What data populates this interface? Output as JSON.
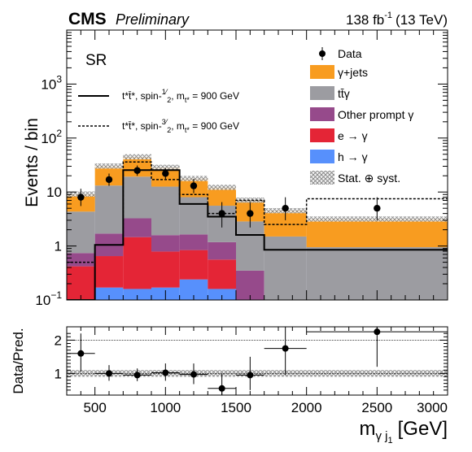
{
  "header": {
    "cms": "CMS",
    "preliminary": "Preliminary",
    "lumi_value": "138 fb",
    "lumi_exp": "-1",
    "energy": "(13 TeV)"
  },
  "region_label": "SR",
  "colors": {
    "gjets": "#f89c20",
    "ttgamma": "#9c9ca1",
    "other_prompt": "#964a8b",
    "e_gamma": "#e42536",
    "h_gamma": "#5790fc",
    "uncertainty": "#888888"
  },
  "legend": {
    "data": "Data",
    "gjets": "γ+jets",
    "ttgamma": "tt̄γ",
    "other_prompt": "Other prompt γ",
    "e_gamma": "e → γ",
    "h_gamma": "h → γ",
    "unc": "Stat. ⊕ syst."
  },
  "signal_labels": {
    "spin_half": {
      "name": "t*t̄*, spin-",
      "num": "1",
      "den": "2",
      "mass_prefix": ", m",
      "mass_sub": "t*",
      "mass_value": " = 900 GeV"
    },
    "spin_three_half": {
      "name": "t*t̄*, spin-",
      "num": "3",
      "den": "2",
      "mass_prefix": ", m",
      "mass_sub": "t*",
      "mass_value": " = 900 GeV"
    }
  },
  "chart_data": {
    "type": "bar",
    "ylabel": "Events / bin",
    "xlabel_main": "m",
    "xlabel_sub": "γ j",
    "xlabel_subsub": "1",
    "xlabel_unit": "[GeV]",
    "ratio_ylabel": "Data/Pred.",
    "xlim": [
      300,
      3000
    ],
    "ylim": [
      0.1,
      10000
    ],
    "yscale": "log",
    "ratio_ylim": [
      0.35,
      2.4
    ],
    "x_ticks": [
      500,
      1000,
      1500,
      2000,
      2500,
      3000
    ],
    "y_ticks": [
      {
        "value": 0.1,
        "base": "10",
        "exp": "−1"
      },
      {
        "value": 1,
        "base": "1",
        "exp": ""
      },
      {
        "value": 10,
        "base": "10",
        "exp": ""
      },
      {
        "value": 100,
        "base": "10",
        "exp": "2"
      },
      {
        "value": 1000,
        "base": "10",
        "exp": "3"
      }
    ],
    "ratio_y_ticks": [
      1,
      2
    ],
    "bin_edges": [
      300,
      500,
      700,
      900,
      1100,
      1300,
      1500,
      1700,
      2000,
      3000
    ],
    "stack": [
      {
        "key": "h_gamma",
        "values": [
          0.1,
          0.17,
          0.16,
          0.17,
          0.24,
          0.16,
          0,
          0,
          0
        ]
      },
      {
        "key": "e_gamma",
        "values": [
          0.32,
          0.48,
          1.3,
          0.62,
          0.6,
          0.4,
          0,
          0,
          0
        ]
      },
      {
        "key": "other_prompt",
        "values": [
          0.32,
          1.05,
          1.8,
          0.8,
          0.8,
          0.62,
          0.35,
          0,
          0
        ]
      },
      {
        "key": "ttgamma",
        "values": [
          3.6,
          11.5,
          16.0,
          11.0,
          6.4,
          4.4,
          2.5,
          1.5,
          0.95
        ]
      },
      {
        "key": "gjets",
        "values": [
          4.8,
          17.0,
          25.5,
          16.0,
          9.7,
          6.6,
          4.2,
          3.0,
          2.2
        ]
      }
    ],
    "signal_spin_half": [
      0.1,
      1.05,
      25.5,
      25.5,
      6.0,
      3.5,
      1.6,
      0.85,
      0.85
    ],
    "signal_spin_three_half": [
      0.5,
      1.05,
      36.0,
      17.0,
      9.0,
      4.0,
      7.0,
      2.5,
      7.5
    ],
    "data": [
      {
        "x": 400,
        "y": 8.0,
        "ylo": 5.5,
        "yhi": 11.5
      },
      {
        "x": 600,
        "y": 17.0,
        "ylo": 13.0,
        "yhi": 22.0
      },
      {
        "x": 800,
        "y": 25.0,
        "ylo": 20.0,
        "yhi": 31.0
      },
      {
        "x": 1000,
        "y": 22.0,
        "ylo": 17.5,
        "yhi": 27.5
      },
      {
        "x": 1200,
        "y": 13.0,
        "ylo": 9.5,
        "yhi": 17.5
      },
      {
        "x": 1400,
        "y": 4.0,
        "ylo": 2.2,
        "yhi": 6.5
      },
      {
        "x": 1600,
        "y": 4.0,
        "ylo": 2.2,
        "yhi": 6.5
      },
      {
        "x": 1850,
        "y": 5.0,
        "ylo": 3.0,
        "yhi": 8.0
      },
      {
        "x": 2500,
        "y": 5.0,
        "ylo": 3.0,
        "yhi": 8.0
      }
    ],
    "ratio": [
      {
        "x": 400,
        "xlo": 300,
        "xhi": 500,
        "y": 1.6,
        "ylo": 1.05,
        "yhi": 2.2
      },
      {
        "x": 600,
        "xlo": 500,
        "xhi": 700,
        "y": 1.0,
        "ylo": 0.78,
        "yhi": 1.25
      },
      {
        "x": 800,
        "xlo": 700,
        "xhi": 900,
        "y": 0.95,
        "ylo": 0.77,
        "yhi": 1.15
      },
      {
        "x": 1000,
        "xlo": 900,
        "xhi": 1100,
        "y": 1.02,
        "ylo": 0.78,
        "yhi": 1.3
      },
      {
        "x": 1200,
        "xlo": 1100,
        "xhi": 1300,
        "y": 0.97,
        "ylo": 0.68,
        "yhi": 1.3
      },
      {
        "x": 1400,
        "xlo": 1300,
        "xhi": 1500,
        "y": 0.55,
        "ylo": 0.35,
        "yhi": 1.0
      },
      {
        "x": 1600,
        "xlo": 1500,
        "xhi": 1700,
        "y": 0.95,
        "ylo": 0.5,
        "yhi": 1.5
      },
      {
        "x": 1850,
        "xlo": 1700,
        "xhi": 2000,
        "y": 1.75,
        "ylo": 0.95,
        "yhi": 2.4
      },
      {
        "x": 2500,
        "xlo": 2000,
        "xhi": 3000,
        "y": 2.25,
        "ylo": 1.2,
        "yhi": 2.4
      }
    ],
    "ratio_band_halfwidth": 0.1
  }
}
